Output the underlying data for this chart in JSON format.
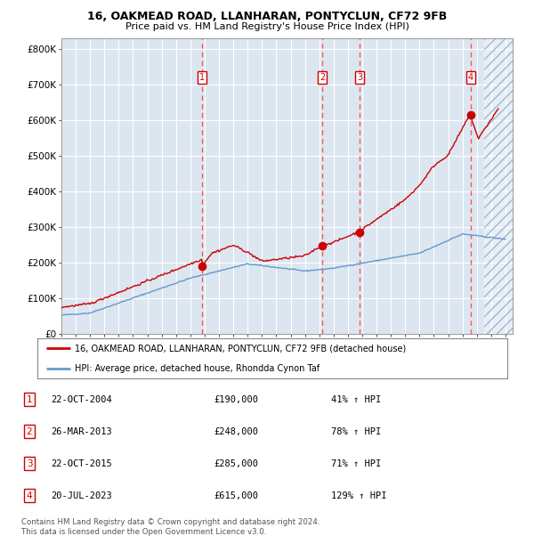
{
  "title1": "16, OAKMEAD ROAD, LLANHARAN, PONTYCLUN, CF72 9FB",
  "title2": "Price paid vs. HM Land Registry's House Price Index (HPI)",
  "bg_color": "#dce6f1",
  "grid_color": "#ffffff",
  "red_line_color": "#cc0000",
  "blue_line_color": "#6699cc",
  "marker_color": "#cc0000",
  "vline_color": "#ff5555",
  "ylabel_ticks": [
    "£0",
    "£100K",
    "£200K",
    "£300K",
    "£400K",
    "£500K",
    "£600K",
    "£700K",
    "£800K"
  ],
  "ytick_values": [
    0,
    100000,
    200000,
    300000,
    400000,
    500000,
    600000,
    700000,
    800000
  ],
  "ylim": [
    0,
    830000
  ],
  "xlim_start": 1995.0,
  "xlim_end": 2026.5,
  "sale_dates": [
    2004.81,
    2013.23,
    2015.81,
    2023.55
  ],
  "sale_prices": [
    190000,
    248000,
    285000,
    615000
  ],
  "sale_labels": [
    "1",
    "2",
    "3",
    "4"
  ],
  "legend_line1": "16, OAKMEAD ROAD, LLANHARAN, PONTYCLUN, CF72 9FB (detached house)",
  "legend_line2": "HPI: Average price, detached house, Rhondda Cynon Taf",
  "table_data": [
    [
      "1",
      "22-OCT-2004",
      "£190,000",
      "41% ↑ HPI"
    ],
    [
      "2",
      "26-MAR-2013",
      "£248,000",
      "78% ↑ HPI"
    ],
    [
      "3",
      "22-OCT-2015",
      "£285,000",
      "71% ↑ HPI"
    ],
    [
      "4",
      "20-JUL-2023",
      "£615,000",
      "129% ↑ HPI"
    ]
  ],
  "footer": "Contains HM Land Registry data © Crown copyright and database right 2024.\nThis data is licensed under the Open Government Licence v3.0."
}
